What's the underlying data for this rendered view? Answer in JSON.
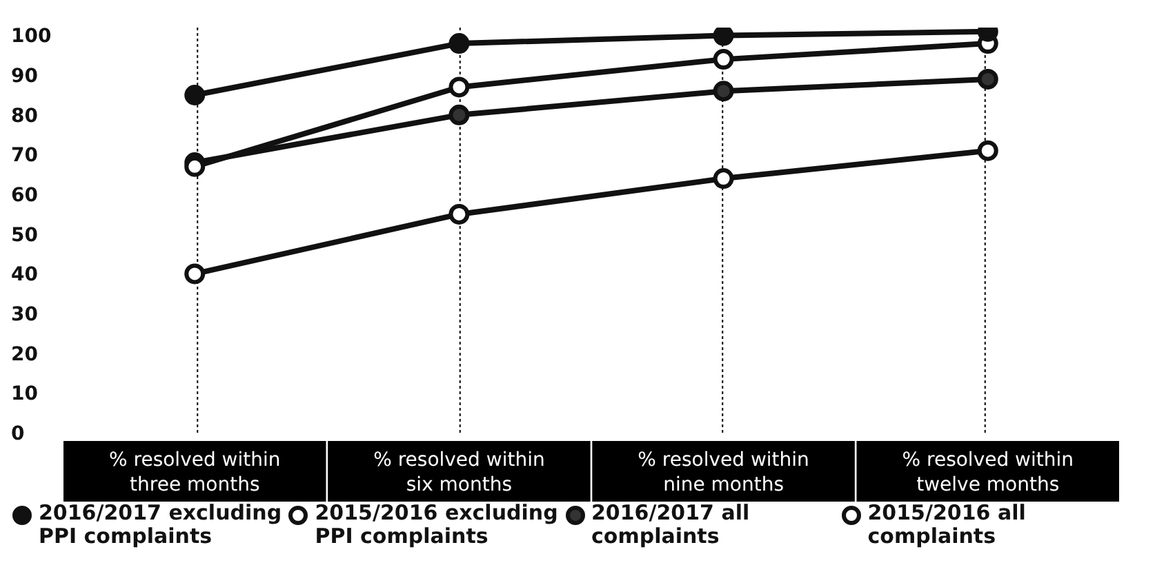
{
  "chart_data": {
    "type": "line",
    "categories": [
      "% resolved within three months",
      "% resolved within six months",
      "% resolved within nine months",
      "% resolved within twelve months"
    ],
    "series": [
      {
        "name": "2016/2017 excluding PPI complaints",
        "color": "#111111",
        "colors": [
          "#111111",
          "#111111",
          "#111111",
          "#111111"
        ],
        "values": [
          85,
          98,
          100,
          101
        ]
      },
      {
        "name": "2015/2016 excluding PPI complaints",
        "color": "#111111",
        "colors": [
          "#ffffff",
          "#ffffff",
          "#ffffff",
          "#ffffff"
        ],
        "values": [
          67,
          87,
          94,
          98
        ]
      },
      {
        "name": "2016/2017 all complaints",
        "color": "#111111",
        "colors": [
          "#333333",
          "#333333",
          "#333333",
          "#333333"
        ],
        "values": [
          68,
          80,
          86,
          89
        ]
      },
      {
        "name": "2015/2016 all complaints",
        "color": "#111111",
        "colors": [
          "#ffffff",
          "#ffffff",
          "#ffffff",
          "#ffffff"
        ],
        "values": [
          40,
          55,
          64,
          71
        ]
      }
    ],
    "ylim": [
      0,
      102
    ],
    "yticks": [
      0,
      10,
      20,
      30,
      40,
      50,
      60,
      70,
      80,
      90,
      100
    ],
    "grid": "x",
    "legend": "bottom",
    "marker": "circle",
    "line_style": "solid"
  }
}
